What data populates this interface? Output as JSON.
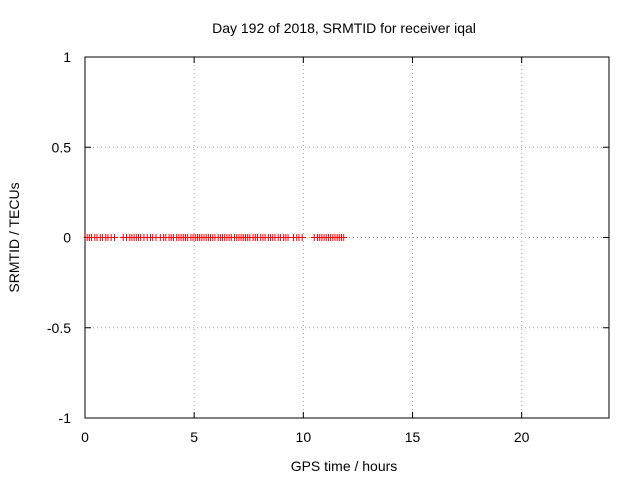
{
  "chart_data": {
    "type": "scatter",
    "title": "Day 192 of 2018, SRMTID for receiver iqal",
    "xlabel": "GPS time / hours",
    "ylabel": "SRMTID / TECUs",
    "xlim": [
      0,
      24
    ],
    "ylim": [
      -1,
      1
    ],
    "xticks": [
      0,
      5,
      10,
      15,
      20
    ],
    "yticks": [
      -1,
      -0.5,
      0,
      0.5,
      1
    ],
    "xtick_labels": [
      "0",
      "5",
      "10",
      "15",
      "20"
    ],
    "ytick_labels": [
      "-1",
      "-0.5",
      "0",
      "0.5",
      "1"
    ],
    "grid": true,
    "marker": "plus",
    "color": "#ff0000",
    "series": [
      {
        "x": [
          0.1,
          0.2,
          0.3,
          0.45,
          0.55,
          0.7,
          0.8,
          0.95,
          1.05,
          1.2,
          1.35,
          1.75,
          1.9,
          2.05,
          2.15,
          2.25,
          2.35,
          2.45,
          2.55,
          2.7,
          2.85,
          3.0,
          3.1,
          3.25,
          3.45,
          3.6,
          3.7,
          3.85,
          3.95,
          4.05,
          4.2,
          4.3,
          4.4,
          4.5,
          4.6,
          4.7,
          4.85,
          4.95,
          5.05,
          5.15,
          5.25,
          5.35,
          5.45,
          5.55,
          5.65,
          5.75,
          5.85,
          5.95,
          6.1,
          6.2,
          6.3,
          6.4,
          6.5,
          6.6,
          6.7,
          6.85,
          6.95,
          7.05,
          7.15,
          7.25,
          7.35,
          7.45,
          7.55,
          7.7,
          7.8,
          7.9,
          8.05,
          8.15,
          8.25,
          8.4,
          8.5,
          8.6,
          8.7,
          8.85,
          8.95,
          9.1,
          9.2,
          9.3,
          9.55,
          9.7,
          9.8,
          9.95,
          10.5,
          10.65,
          10.75,
          10.85,
          10.95,
          11.05,
          11.15,
          11.25,
          11.35,
          11.45,
          11.55,
          11.65,
          11.75,
          11.85
        ],
        "y": [
          0,
          0,
          0,
          0,
          0,
          0,
          0,
          0,
          0,
          0,
          0,
          0,
          0,
          0,
          0,
          0,
          0,
          0,
          0,
          0,
          0,
          0,
          0,
          0,
          0,
          0,
          0,
          0,
          0,
          0,
          0,
          0,
          0,
          0,
          0,
          0,
          0,
          0,
          0,
          0,
          0,
          0,
          0,
          0,
          0,
          0,
          0,
          0,
          0,
          0,
          0,
          0,
          0,
          0,
          0,
          0,
          0,
          0,
          0,
          0,
          0,
          0,
          0,
          0,
          0,
          0,
          0,
          0,
          0,
          0,
          0,
          0,
          0,
          0,
          0,
          0,
          0,
          0,
          0,
          0,
          0,
          0,
          0,
          0,
          0,
          0,
          0,
          0,
          0,
          0,
          0,
          0,
          0,
          0,
          0,
          0
        ]
      }
    ]
  }
}
